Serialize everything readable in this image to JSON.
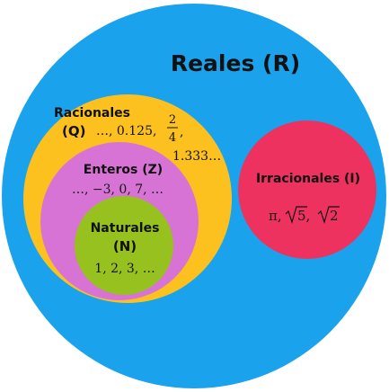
{
  "colors": {
    "reales": "#1aa3ec",
    "racionales": "#fcc11f",
    "enteros": "#d873d6",
    "naturales": "#96c11e",
    "irracionales": "#ee325f"
  },
  "reales": {
    "label": "Reales (R)"
  },
  "racionales": {
    "label_line1": "Racionales",
    "label_line2": "(Q)",
    "examples_a": "…, 0.125,",
    "fraction_num": "2",
    "fraction_den": "4",
    "fraction_comma": ",",
    "examples_b": "1.333…"
  },
  "enteros": {
    "label": "Enteros (Z)",
    "examples": "…, −3, 0, 7, …"
  },
  "naturales": {
    "label_line1": "Naturales",
    "label_line2": "(N)",
    "examples": "1, 2, 3, …"
  },
  "irracionales": {
    "label": "Irracionales (I)",
    "pi": "π,",
    "root1": "5,",
    "root2": "2"
  }
}
